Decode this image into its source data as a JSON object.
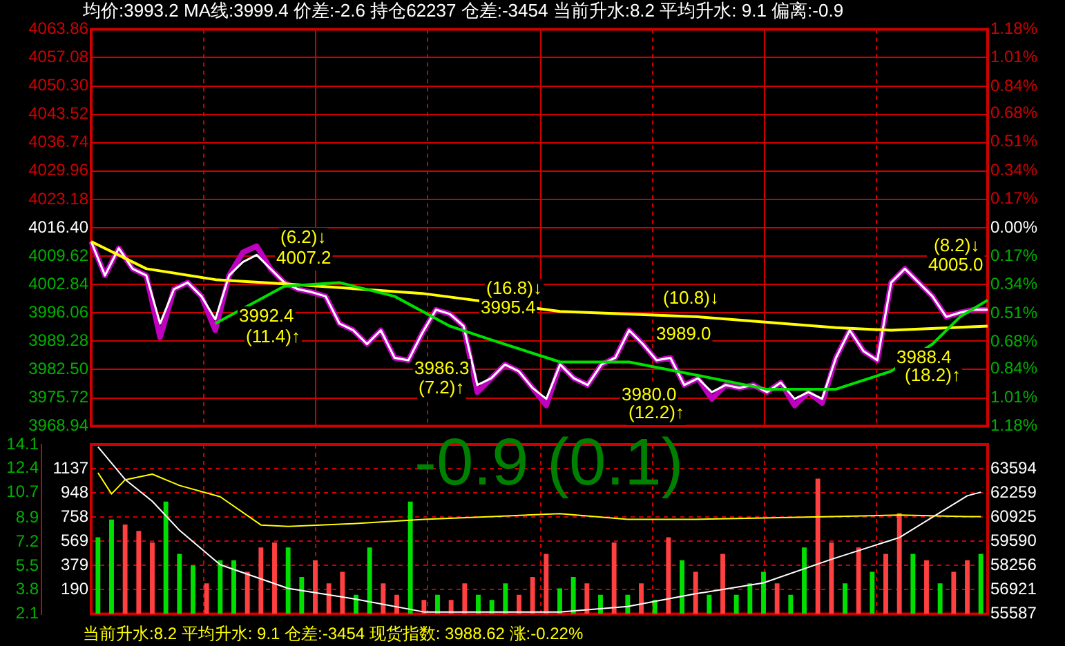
{
  "chart_data": [
    {
      "type": "line",
      "title": "均价:3993.2  MA线:3999.4  价差:-2.6  持仓62237  仓差:-3454  当前升水:8.2 平均升水: 9.1  偏离:-0.9",
      "categories": [
        null,
        null,
        null,
        null,
        null,
        null,
        null,
        null,
        null,
        null,
        null,
        null,
        null,
        null,
        null,
        null,
        null,
        null,
        null,
        null,
        null,
        null,
        null,
        null,
        null,
        null,
        null,
        null,
        null,
        null,
        null,
        null,
        null,
        null,
        null,
        null,
        null,
        null,
        null,
        null,
        null,
        null,
        null,
        null,
        null,
        null,
        null,
        null,
        null,
        null,
        null,
        null,
        null,
        null,
        null,
        null,
        null,
        null,
        null,
        null,
        null,
        null,
        null,
        null,
        null,
        null
      ],
      "series": [
        {
          "color": "#c000c0",
          "values": [
            4013.1,
            4005.0,
            4011.5,
            4006.6,
            4005.0,
            3990.2,
            4001.7,
            4003.3,
            4000.0,
            3991.9,
            4005.0,
            4010.5,
            4012.0,
            4006.6,
            4003.3,
            4001.7,
            4001.0,
            4000.0,
            3993.5,
            3991.9,
            3988.6,
            3991.9,
            3985.3,
            3984.7,
            3991.2,
            3996.8,
            3995.8,
            3992.9,
            3977.1,
            3980.4,
            3983.7,
            3982.1,
            3978.1,
            3973.9,
            3983.7,
            3980.4,
            3978.8,
            3983.7,
            3985.3,
            3991.9,
            3988.6,
            3984.7,
            3985.3,
            3978.8,
            3980.4,
            3975.5,
            3978.8,
            3978.1,
            3978.8,
            3977.1,
            3979.4,
            3973.9,
            3977.1,
            3974.5,
            3985.3,
            3991.9,
            3986.9,
            3984.7,
            4003.3,
            4006.6,
            4003.3,
            4000.0,
            3995.1,
            3996.1,
            3996.8,
            3996.8
          ]
        },
        {
          "color": "#ffffff",
          "values": [
            4013.1,
            4005.0,
            4011.5,
            4006.6,
            4005.0,
            3993.5,
            4001.7,
            4003.3,
            4000.0,
            3994.5,
            4005.0,
            4008.2,
            4009.9,
            4006.6,
            4003.3,
            4001.7,
            4001.0,
            4000.0,
            3993.5,
            3991.9,
            3988.6,
            3991.9,
            3985.3,
            3984.7,
            3991.2,
            3996.8,
            3995.8,
            3992.9,
            3978.8,
            3980.4,
            3983.7,
            3982.1,
            3978.1,
            3975.5,
            3983.7,
            3980.4,
            3978.8,
            3983.7,
            3985.3,
            3991.9,
            3988.6,
            3984.7,
            3985.3,
            3978.8,
            3980.4,
            3977.1,
            3978.8,
            3978.1,
            3978.8,
            3977.1,
            3979.4,
            3975.5,
            3977.1,
            3975.5,
            3985.3,
            3991.9,
            3986.9,
            3984.7,
            4003.3,
            4006.6,
            4003.3,
            4000.0,
            3995.1,
            3996.1,
            3996.8,
            3996.8
          ]
        },
        {
          "color": "#ffff00",
          "values": [
            4013.1,
            null,
            null,
            null,
            4006.6,
            null,
            null,
            null,
            null,
            4004.0,
            null,
            null,
            null,
            null,
            4003.0,
            null,
            null,
            null,
            null,
            null,
            null,
            null,
            null,
            null,
            4000.7,
            null,
            null,
            null,
            null,
            null,
            null,
            null,
            null,
            null,
            3996.4,
            null,
            null,
            null,
            null,
            null,
            null,
            null,
            null,
            null,
            3995.1,
            null,
            null,
            null,
            null,
            null,
            null,
            null,
            null,
            null,
            3992.5,
            null,
            null,
            null,
            3991.9,
            null,
            null,
            null,
            null,
            null,
            null,
            3992.9
          ]
        },
        {
          "color": "#00e000",
          "values": [
            null,
            null,
            null,
            null,
            null,
            null,
            null,
            null,
            null,
            3993.5,
            null,
            null,
            null,
            null,
            4002.4,
            null,
            null,
            null,
            4003.3,
            null,
            null,
            null,
            4000.0,
            null,
            null,
            null,
            3992.9,
            null,
            null,
            3989.6,
            null,
            null,
            null,
            null,
            3984.3,
            null,
            null,
            null,
            null,
            3984.3,
            null,
            null,
            null,
            null,
            3981.1,
            null,
            null,
            null,
            null,
            3977.8,
            null,
            null,
            null,
            null,
            3977.8,
            null,
            null,
            null,
            3982.1,
            null,
            null,
            3988.6,
            null,
            3995.1,
            null,
            3999.1
          ]
        }
      ],
      "ylim": [
        3968.94,
        4063.86
      ],
      "yticks": [
        3968.94,
        3975.72,
        {
          "value": 3982.5,
          "label": "3982.50"
        },
        3989.28,
        3996.06,
        4002.84,
        4009.62,
        {
          "value": 4016.4,
          "label": "4016.40"
        },
        4023.18,
        4029.96,
        4036.74,
        4043.52,
        {
          "value": 4050.3,
          "label": "4050.30"
        },
        4057.08,
        4063.86
      ],
      "y2lim": [
        -1.18,
        1.18
      ],
      "y2ticks": [
        {
          "value": -1.18,
          "label": "1.18%"
        },
        {
          "value": -1.01,
          "label": "1.01%"
        },
        {
          "value": -0.84,
          "label": "0.84%"
        },
        {
          "value": -0.68,
          "label": "0.68%"
        },
        {
          "value": -0.51,
          "label": "0.51%"
        },
        {
          "value": -0.34,
          "label": "0.34%"
        },
        {
          "value": -0.17,
          "label": "0.17%"
        },
        {
          "value": 0,
          "label": "0.00%"
        },
        {
          "value": 0.17,
          "label": "0.17%"
        },
        {
          "value": 0.34,
          "label": "0.34%"
        },
        {
          "value": 0.51,
          "label": "0.51%"
        },
        {
          "value": 0.68,
          "label": "0.68%"
        },
        {
          "value": 0.84,
          "label": "0.84%"
        },
        {
          "value": 1.01,
          "label": "1.01%"
        },
        {
          "value": 1.18,
          "label": "1.18%"
        }
      ],
      "grid": true,
      "marker": "none",
      "annotations": [
        "(6.2)↓",
        "4007.2",
        "3992.4",
        "(11.4)↑",
        "(16.8)↓",
        "3995.4",
        "3986.3",
        "(7.2)↑",
        "(10.8)↓",
        "3989.0",
        "3980.0",
        "(12.2)↑",
        "(8.2)↓",
        "4005.0",
        "3988.4",
        "(18.2)↑"
      ]
    },
    {
      "type": "bar",
      "categories": [
        null,
        null,
        null,
        null,
        null,
        null,
        null,
        null,
        null,
        null,
        null,
        null,
        null,
        null,
        null,
        null,
        null,
        null,
        null,
        null,
        null,
        null,
        null,
        null,
        null,
        null,
        null,
        null,
        null,
        null,
        null,
        null,
        null,
        null,
        null,
        null,
        null,
        null,
        null,
        null,
        null,
        null,
        null,
        null,
        null,
        null,
        null,
        null,
        null,
        null,
        null,
        null,
        null,
        null,
        null,
        null,
        null,
        null,
        null,
        null,
        null,
        null,
        null,
        null,
        null,
        null
      ],
      "series": [
        {
          "type": "bar",
          "colors": [
            "#00e000",
            "#00e000",
            "#ff4040",
            "#ff4040",
            "#ff4040",
            "#00e000",
            "#00e000",
            "#00e000",
            "#ff4040",
            "#00e000",
            "#00e000",
            "#ff4040",
            "#ff4040",
            "#ff4040",
            "#00e000",
            "#00e000",
            "#ff4040",
            "#ff4040",
            "#ff4040",
            "#00e000",
            "#00e000",
            "#ff4040",
            "#ff4040",
            "#00e000",
            "#ff4040",
            "#00e000",
            "#ff4040",
            "#ff4040",
            "#00e000",
            "#00e000",
            "#00e000",
            "#ff4040",
            "#ff4040",
            "#ff4040",
            "#00e000",
            "#00e000",
            "#ff4040",
            "#00e000",
            "#ff4040",
            "#00e000",
            "#ff4040",
            "#00e000",
            "#ff4040",
            "#00e000",
            "#ff4040",
            "#00e000",
            "#ff4040",
            "#00e000",
            "#00e000",
            "#00e000",
            "#ff4040",
            "#00e000",
            "#00e000",
            "#ff4040",
            "#ff4040",
            "#00e000",
            "#ff4040",
            "#00e000",
            "#ff4040",
            "#ff4040",
            "#00e000",
            "#ff4040",
            "#00e000",
            "#ff4040",
            "#ff4040",
            "#00e000"
          ],
          "values": [
            600,
            740,
            700,
            650,
            560,
            880,
            470,
            380,
            240,
            420,
            420,
            330,
            520,
            560,
            520,
            290,
            420,
            240,
            330,
            150,
            520,
            240,
            150,
            880,
            110,
            150,
            110,
            240,
            150,
            110,
            240,
            150,
            290,
            470,
            200,
            290,
            240,
            150,
            560,
            150,
            240,
            110,
            600,
            420,
            330,
            150,
            470,
            150,
            240,
            330,
            240,
            150,
            520,
            1060,
            560,
            240,
            520,
            330,
            470,
            790,
            470,
            420,
            240,
            330,
            420,
            470
          ]
        },
        {
          "type": "line",
          "color": "#ffffff",
          "axis": "y2",
          "values": [
            64800,
            null,
            63000,
            null,
            61800,
            null,
            60200,
            null,
            null,
            58300,
            null,
            null,
            null,
            null,
            57000,
            null,
            null,
            null,
            null,
            56400,
            null,
            null,
            null,
            null,
            55700,
            null,
            null,
            null,
            null,
            55700,
            null,
            null,
            null,
            null,
            55700,
            null,
            null,
            null,
            null,
            56000,
            null,
            null,
            null,
            null,
            56700,
            null,
            null,
            null,
            null,
            57300,
            null,
            null,
            null,
            null,
            58600,
            null,
            null,
            null,
            null,
            59800,
            null,
            null,
            null,
            null,
            62100,
            62300
          ]
        },
        {
          "type": "line",
          "color": "#ffff00",
          "axis": "y3",
          "values": [
            12.1,
            10.6,
            11.6,
            null,
            12.0,
            null,
            11.2,
            null,
            null,
            10.4,
            null,
            null,
            8.4,
            null,
            8.3,
            null,
            null,
            null,
            null,
            8.5,
            null,
            null,
            null,
            null,
            8.8,
            null,
            null,
            null,
            null,
            9.0,
            null,
            null,
            null,
            null,
            9.2,
            null,
            null,
            null,
            null,
            8.8,
            null,
            null,
            null,
            null,
            8.8,
            null,
            null,
            null,
            null,
            8.9,
            null,
            null,
            null,
            null,
            9.0,
            null,
            null,
            null,
            null,
            9.1,
            null,
            null,
            null,
            null,
            9.0,
            9.0
          ]
        }
      ],
      "ylim": [
        0,
        1327
      ],
      "yticks": [
        190,
        379,
        569,
        758,
        948,
        1137
      ],
      "y2lim": [
        55587,
        64929
      ],
      "y2ticks": [
        55587,
        56921,
        58256,
        59590,
        60925,
        62259,
        63594
      ],
      "y3lim": [
        2.1,
        14.1
      ],
      "y3ticks": [
        2.1,
        3.8,
        5.5,
        7.2,
        8.9,
        10.7,
        12.4,
        14.1
      ],
      "grid": true,
      "marker": "none",
      "annotations": [
        "-0.9 (0.1)",
        "当前升水:8.2 平均升水: 9.1  仓差:-3454  现货指数: 3988.62 涨:-0.22%"
      ]
    }
  ]
}
